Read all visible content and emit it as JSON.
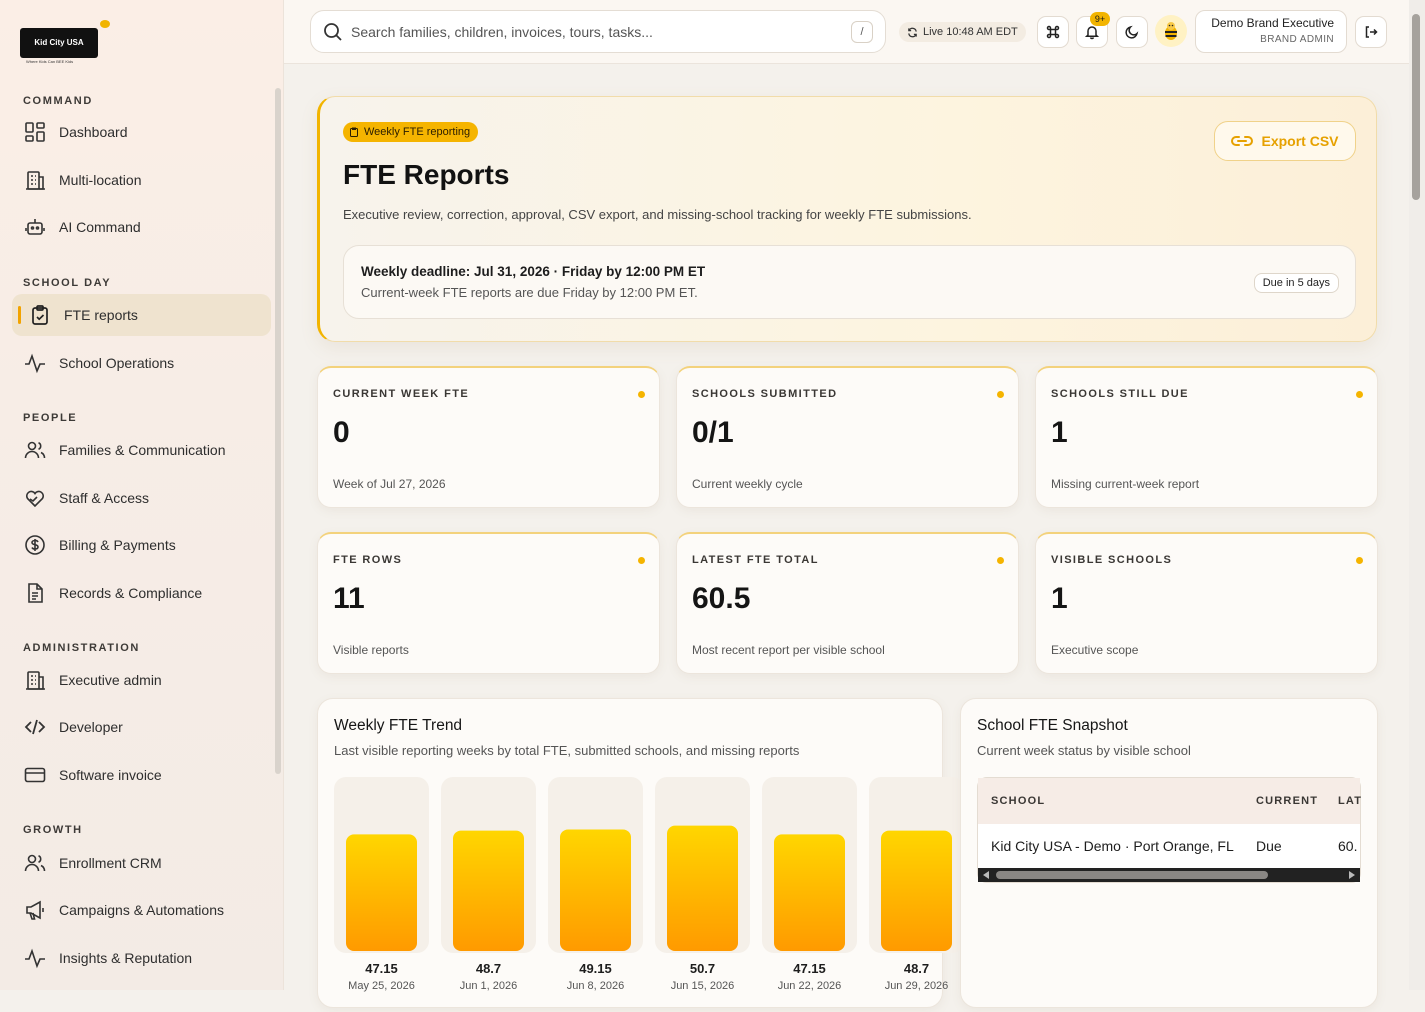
{
  "brand": {
    "logo_text": "Kid City USA",
    "tagline": "Where Kids Can BEE Kids"
  },
  "sidebar": {
    "sections": [
      {
        "title": "COMMAND",
        "items": [
          {
            "label": "Dashboard",
            "icon": "dashboard-icon"
          },
          {
            "label": "Multi-location",
            "icon": "building-icon"
          },
          {
            "label": "AI Command",
            "icon": "robot-icon"
          }
        ]
      },
      {
        "title": "SCHOOL DAY",
        "items": [
          {
            "label": "FTE reports",
            "icon": "clipboard-check-icon",
            "active": true
          },
          {
            "label": "School Operations",
            "icon": "pulse-icon"
          }
        ]
      },
      {
        "title": "PEOPLE",
        "items": [
          {
            "label": "Families & Communication",
            "icon": "users-icon"
          },
          {
            "label": "Staff & Access",
            "icon": "heart-hand-icon"
          },
          {
            "label": "Billing & Payments",
            "icon": "dollar-icon"
          },
          {
            "label": "Records & Compliance",
            "icon": "document-icon"
          }
        ]
      },
      {
        "title": "ADMINISTRATION",
        "items": [
          {
            "label": "Executive admin",
            "icon": "building-icon"
          },
          {
            "label": "Developer",
            "icon": "code-icon"
          },
          {
            "label": "Software invoice",
            "icon": "card-icon"
          }
        ]
      },
      {
        "title": "GROWTH",
        "items": [
          {
            "label": "Enrollment CRM",
            "icon": "users-icon"
          },
          {
            "label": "Campaigns & Automations",
            "icon": "megaphone-icon"
          },
          {
            "label": "Insights & Reputation",
            "icon": "pulse-icon"
          }
        ]
      }
    ]
  },
  "topbar": {
    "search_placeholder": "Search families, children, invoices, tours, tasks...",
    "search_shortcut": "/",
    "live_status": "Live 10:48 AM EDT",
    "notification_count": "9+",
    "user_name": "Demo Brand Executive",
    "user_role": "BRAND ADMIN"
  },
  "hero": {
    "pill": "Weekly FTE reporting",
    "title": "FTE Reports",
    "description": "Executive review, correction, approval, CSV export, and missing-school tracking for weekly FTE submissions.",
    "export_label": "Export CSV",
    "deadline_title": "Weekly deadline: Jul 31, 2026 · Friday by 12:00 PM ET",
    "deadline_sub": "Current-week FTE reports are due Friday by 12:00 PM ET.",
    "due_badge": "Due in 5 days"
  },
  "stats": [
    {
      "label": "CURRENT WEEK FTE",
      "value": "0",
      "sub": "Week of Jul 27, 2026"
    },
    {
      "label": "SCHOOLS SUBMITTED",
      "value": "0/1",
      "sub": "Current weekly cycle"
    },
    {
      "label": "SCHOOLS STILL DUE",
      "value": "1",
      "sub": "Missing current-week report"
    },
    {
      "label": "FTE ROWS",
      "value": "11",
      "sub": "Visible reports"
    },
    {
      "label": "LATEST FTE TOTAL",
      "value": "60.5",
      "sub": "Most recent report per visible school"
    },
    {
      "label": "VISIBLE SCHOOLS",
      "value": "1",
      "sub": "Executive scope"
    }
  ],
  "trend": {
    "title": "Weekly FTE Trend",
    "subtitle": "Last visible reporting weeks by total FTE, submitted schools, and missing reports"
  },
  "chart_data": {
    "type": "bar",
    "categories": [
      "May 25, 2026",
      "Jun 1, 2026",
      "Jun 8, 2026",
      "Jun 15, 2026",
      "Jun 22, 2026",
      "Jun 29, 2026"
    ],
    "values": [
      47.15,
      48.7,
      49.15,
      50.7,
      47.15,
      48.7
    ],
    "value_labels": [
      "47.15",
      "48.7",
      "49.15",
      "50.7",
      "47.15",
      "48.7"
    ],
    "bar_color_top": "#ffd600",
    "bar_color_bottom": "#ff9a00"
  },
  "snapshot": {
    "title": "School FTE Snapshot",
    "subtitle": "Current week status by visible school",
    "columns": [
      "SCHOOL",
      "CURRENT",
      "LAT"
    ],
    "rows": [
      [
        "Kid City USA - Demo · Port Orange, FL",
        "Due",
        "60."
      ]
    ]
  }
}
